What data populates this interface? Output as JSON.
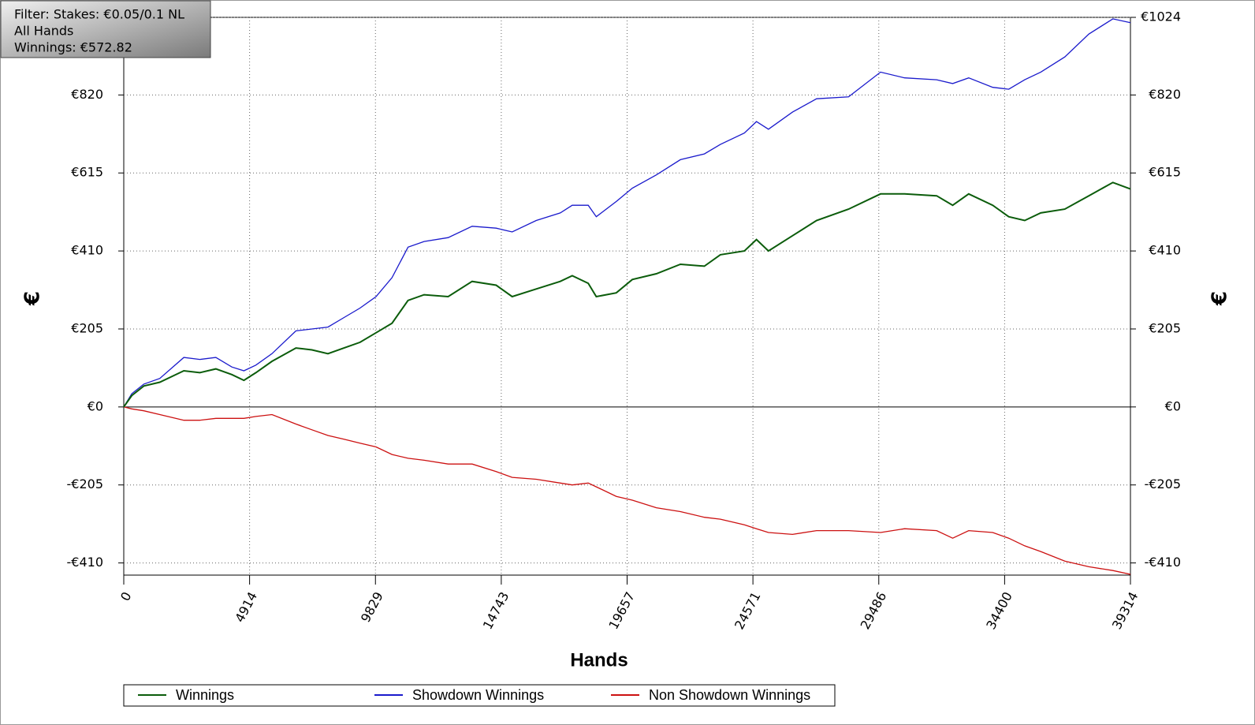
{
  "chart_data": {
    "type": "line",
    "annotations": [
      "Filter: Stakes: €0.05/0.1 NL",
      "All Hands",
      "Winnings: €572.82"
    ],
    "xlabel": "Hands",
    "ylabel": "€",
    "xlim": [
      0,
      39314
    ],
    "xticks": [
      0,
      4914,
      9829,
      14743,
      19657,
      24571,
      29486,
      34400,
      39314
    ],
    "ylim": [
      -442,
      1024
    ],
    "yticks": [
      {
        "value": -410,
        "label": "-€410"
      },
      {
        "value": -205,
        "label": "-€205"
      },
      {
        "value": 0,
        "label": "€0"
      },
      {
        "value": 205,
        "label": "€205"
      },
      {
        "value": 410,
        "label": "€410"
      },
      {
        "value": 615,
        "label": "€615"
      },
      {
        "value": 820,
        "label": "€820"
      },
      {
        "value": 1024,
        "label": "€1024"
      }
    ],
    "grid": true,
    "x": [
      0,
      313,
      782,
      1408,
      2346,
      2971,
      3597,
      4222,
      4692,
      5161,
      5787,
      6724,
      7350,
      7975,
      8601,
      9227,
      9852,
      10478,
      11103,
      11729,
      12667,
      13605,
      14543,
      15169,
      16107,
      17045,
      17514,
      18140,
      18453,
      19235,
      19860,
      20799,
      21737,
      22675,
      23300,
      24239,
      24708,
      25177,
      26115,
      27054,
      28305,
      29556,
      30494,
      31746,
      32371,
      32997,
      33935,
      34560,
      35186,
      35812,
      36750,
      37688,
      38626,
      39314
    ],
    "series": [
      {
        "name": "Winnings",
        "color": "#0b5c0b",
        "values": [
          0,
          30,
          55,
          65,
          95,
          90,
          100,
          85,
          70,
          90,
          120,
          155,
          150,
          140,
          155,
          170,
          195,
          220,
          280,
          295,
          290,
          330,
          320,
          290,
          310,
          330,
          345,
          325,
          290,
          300,
          335,
          350,
          375,
          370,
          400,
          410,
          440,
          410,
          450,
          490,
          520,
          560,
          560,
          555,
          530,
          560,
          530,
          500,
          490,
          510,
          520,
          555,
          590,
          572.82
        ]
      },
      {
        "name": "Showdown Winnings",
        "color": "#1a1acc",
        "values": [
          0,
          35,
          60,
          75,
          130,
          125,
          130,
          105,
          95,
          110,
          140,
          200,
          205,
          210,
          235,
          260,
          290,
          340,
          420,
          435,
          445,
          475,
          470,
          460,
          490,
          510,
          530,
          530,
          500,
          540,
          575,
          610,
          650,
          665,
          690,
          720,
          750,
          730,
          775,
          810,
          815,
          880,
          865,
          860,
          850,
          865,
          840,
          835,
          860,
          880,
          920,
          980,
          1020,
          1010
        ]
      },
      {
        "name": "Non Showdown Winnings",
        "color": "#cc1111",
        "values": [
          0,
          -5,
          -10,
          -20,
          -35,
          -35,
          -30,
          -30,
          -30,
          -25,
          -20,
          -45,
          -60,
          -75,
          -85,
          -95,
          -105,
          -125,
          -135,
          -140,
          -150,
          -150,
          -170,
          -185,
          -190,
          -200,
          -205,
          -200,
          -210,
          -235,
          -245,
          -265,
          -275,
          -290,
          -295,
          -310,
          -320,
          -330,
          -335,
          -325,
          -325,
          -330,
          -320,
          -325,
          -345,
          -325,
          -330,
          -345,
          -365,
          -380,
          -405,
          -420,
          -430,
          -440
        ]
      }
    ]
  }
}
